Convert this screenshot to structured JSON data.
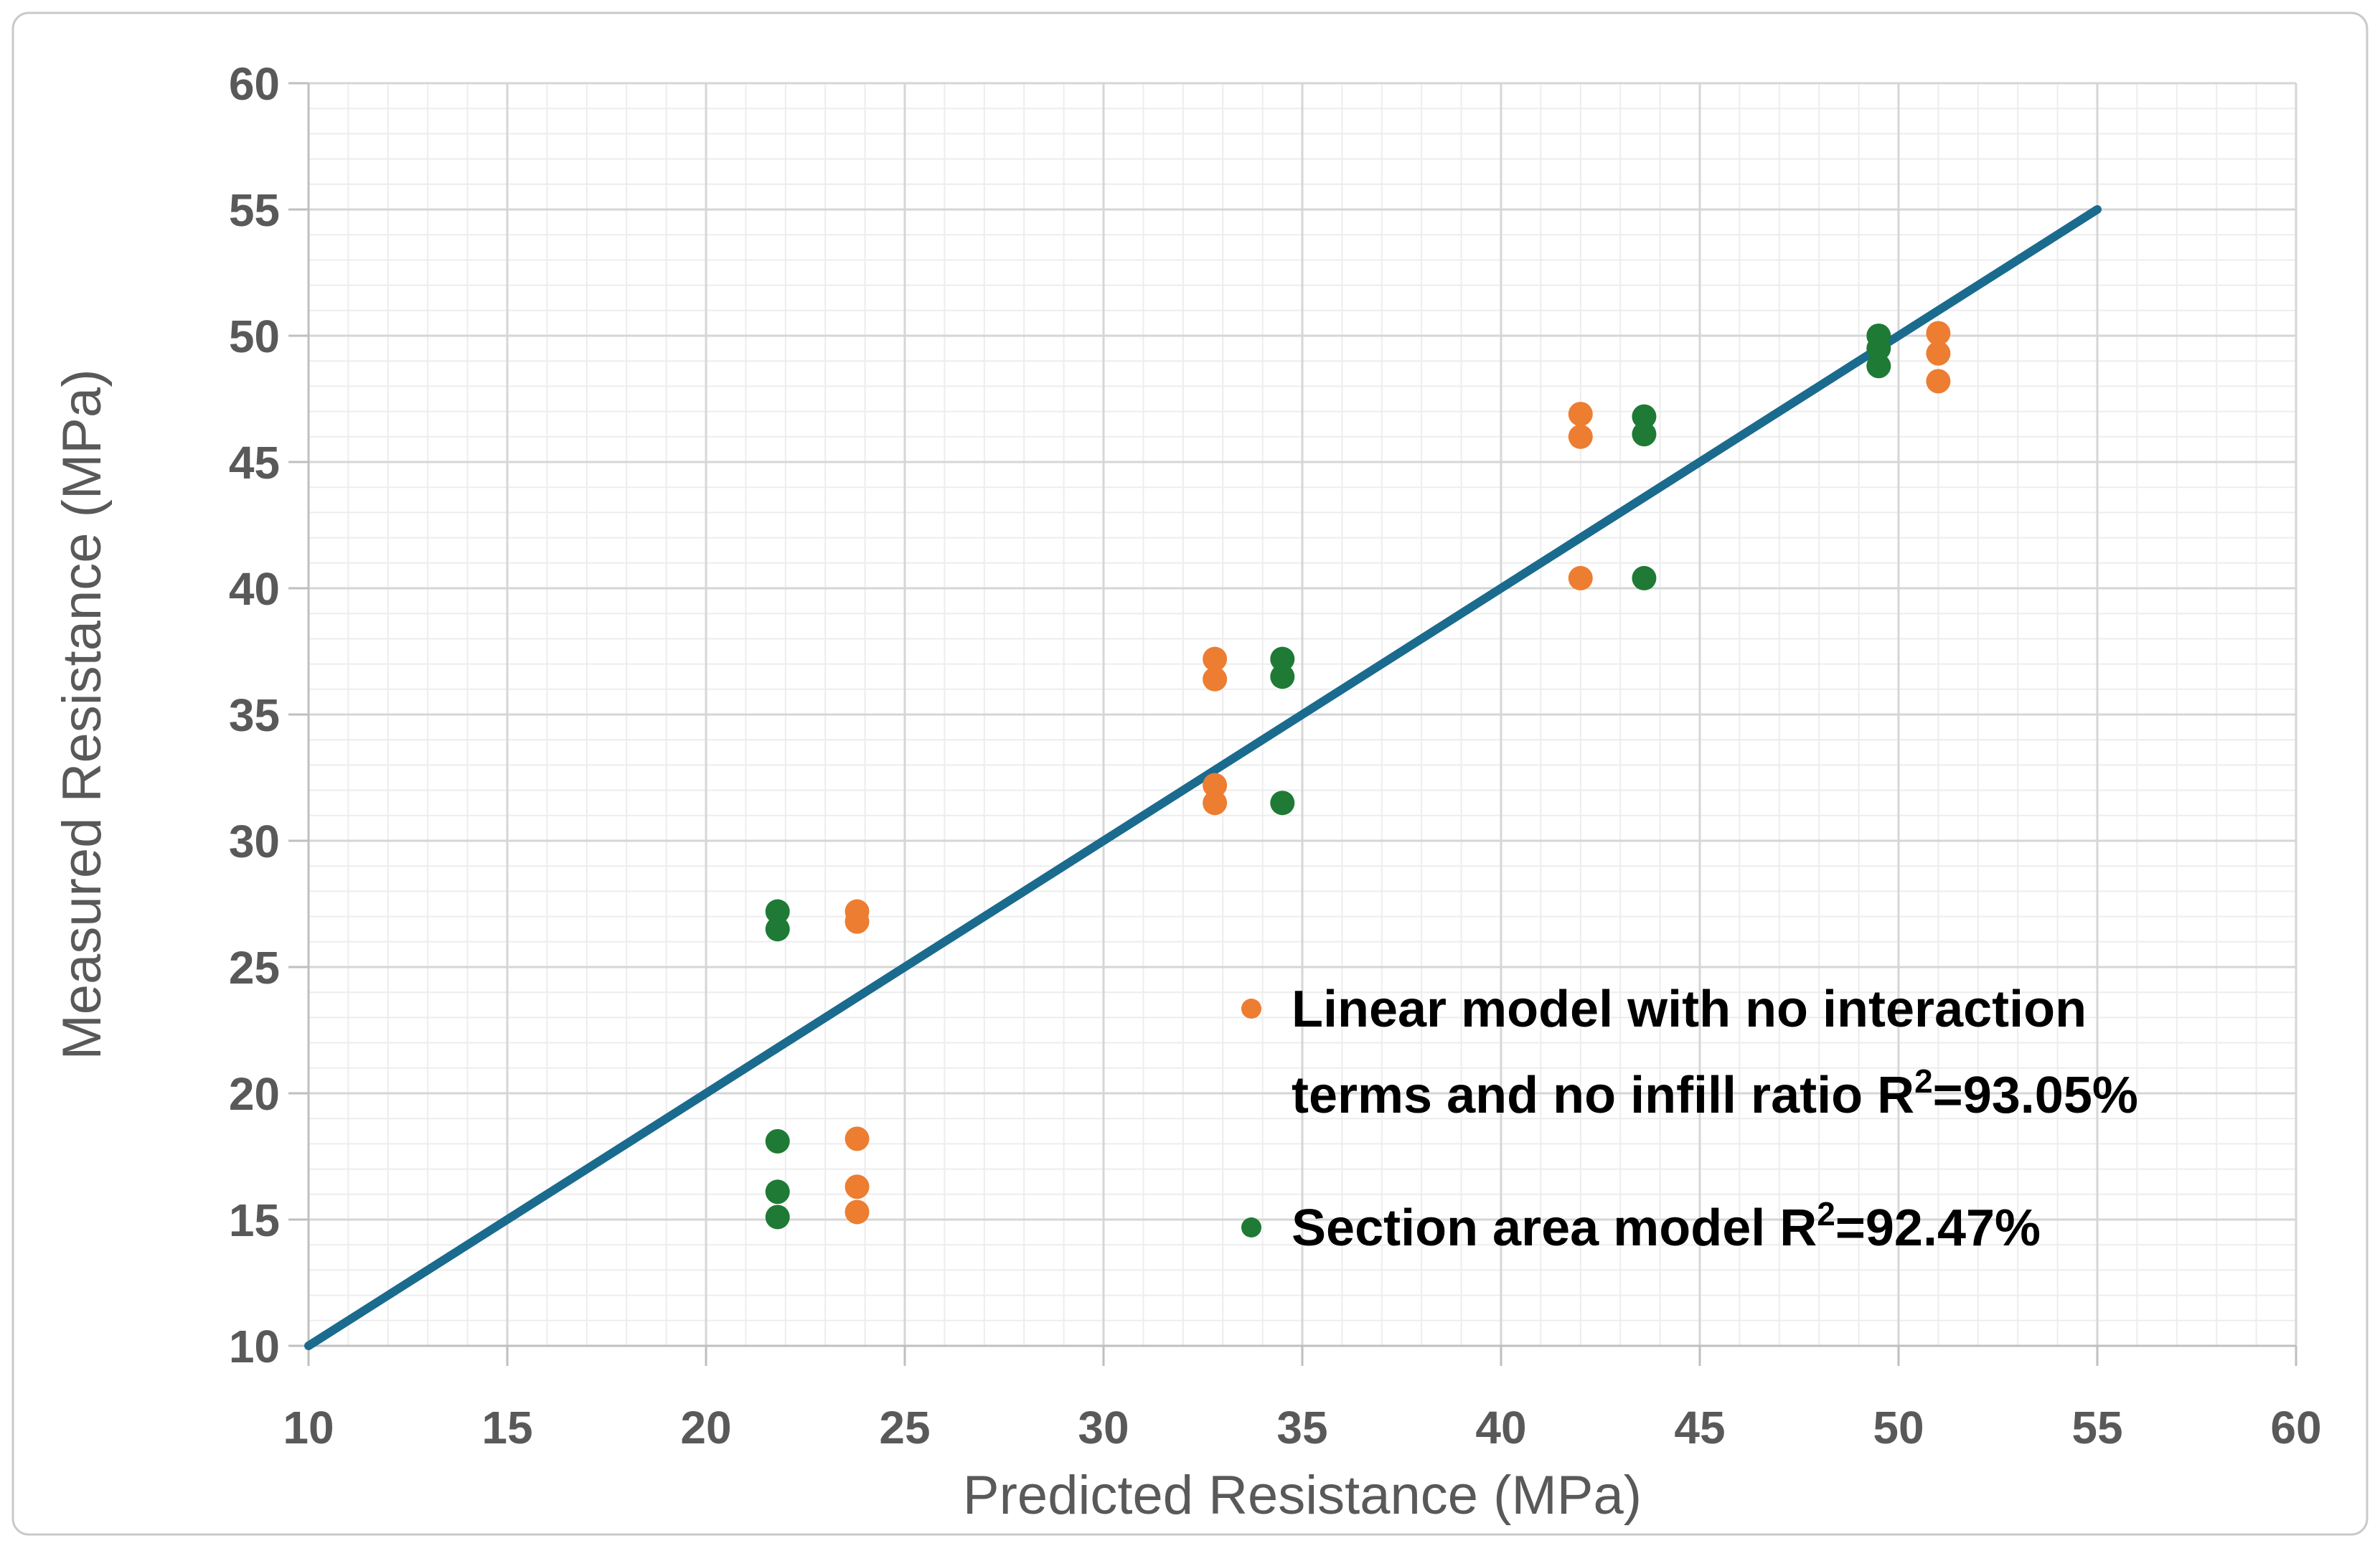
{
  "chart_data": {
    "type": "scatter",
    "title": "",
    "xlabel": "Predicted Resistance (MPa)",
    "ylabel": "Measured Resistance (MPa)",
    "xlim": [
      10,
      60
    ],
    "ylim": [
      10,
      60
    ],
    "x_ticks": [
      10,
      15,
      20,
      25,
      30,
      35,
      40,
      45,
      50,
      55,
      60
    ],
    "y_ticks": [
      10,
      15,
      20,
      25,
      30,
      35,
      40,
      45,
      50,
      55,
      60
    ],
    "minor_grid_step": 1,
    "major_grid_step": 5,
    "grid": "major+minor",
    "legend_position": "inside-lower-right",
    "identity_line": {
      "name": "reference-line",
      "x1": 10,
      "y1": 10,
      "x2": 55,
      "y2": 55,
      "color": "#1A6B8E"
    },
    "series": [
      {
        "name": "Linear model with no interaction terms and no infill ratio R²=93.05%",
        "legend_lines": [
          "Linear model with no interaction",
          "terms and no infill ratio R²=93.05%"
        ],
        "color": "#ED7D31",
        "points": [
          [
            23.8,
            27.2
          ],
          [
            23.8,
            26.8
          ],
          [
            23.8,
            18.2
          ],
          [
            23.8,
            16.3
          ],
          [
            23.8,
            15.3
          ],
          [
            32.8,
            37.2
          ],
          [
            32.8,
            36.4
          ],
          [
            32.8,
            32.2
          ],
          [
            32.8,
            31.5
          ],
          [
            42.0,
            46.9
          ],
          [
            42.0,
            46.0
          ],
          [
            42.0,
            40.4
          ],
          [
            51.0,
            50.1
          ],
          [
            51.0,
            49.3
          ],
          [
            51.0,
            48.2
          ]
        ]
      },
      {
        "name": "Section area model R²=92.47%",
        "legend_lines": [
          "Section area model R²=92.47%"
        ],
        "color": "#1E7A34",
        "points": [
          [
            21.8,
            27.2
          ],
          [
            21.8,
            26.5
          ],
          [
            21.8,
            18.1
          ],
          [
            21.8,
            16.1
          ],
          [
            21.8,
            15.1
          ],
          [
            34.5,
            37.2
          ],
          [
            34.5,
            36.5
          ],
          [
            34.5,
            31.5
          ],
          [
            43.6,
            46.8
          ],
          [
            43.6,
            46.1
          ],
          [
            43.6,
            40.4
          ],
          [
            49.5,
            50.0
          ],
          [
            49.5,
            49.5
          ],
          [
            49.5,
            48.8
          ]
        ]
      }
    ],
    "style": {
      "background": "#FFFFFF",
      "border": "#C9C9C9",
      "grid_minor": "#EDEDED",
      "grid_major": "#D6D6D6",
      "axis_line": "#BFBFBF",
      "tick_label_color": "#595959",
      "axis_title_color": "#595959",
      "legend_text_color": "#000000"
    }
  }
}
